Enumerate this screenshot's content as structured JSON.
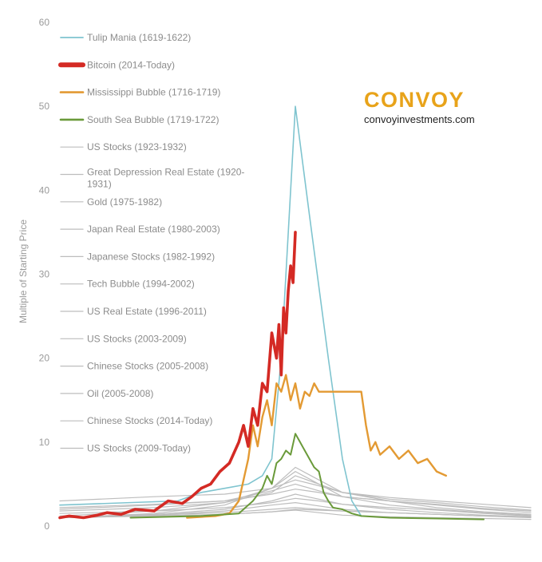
{
  "brand": {
    "name": "CONVOY",
    "website": "convoyinvestments.com",
    "accent_color": "#e8a31a",
    "website_color": "#222222"
  },
  "chart_data": {
    "type": "line",
    "title": "",
    "xlabel": "",
    "ylabel": "Multiple of Starting Price",
    "ylim": [
      0,
      60
    ],
    "y_ticks": [
      0,
      10,
      20,
      30,
      40,
      50,
      60
    ],
    "x_axis_labels_visible": false,
    "grid": false,
    "legend_position": "top-left",
    "series": [
      {
        "name": "Tulip Mania (1619-1622)",
        "color": "#7fc4cf",
        "width": 1.6,
        "legend_width": 1.8,
        "x": [
          0.0,
          0.25,
          0.3,
          0.35,
          0.4,
          0.43,
          0.45,
          0.47,
          0.5,
          0.53,
          0.57,
          0.6,
          0.62,
          0.64
        ],
        "y": [
          2.5,
          3,
          4,
          4.5,
          5,
          6,
          8,
          20,
          50,
          37,
          20,
          8,
          3,
          1.2
        ]
      },
      {
        "name": "Bitcoin (2014-Today)",
        "color": "#d42a24",
        "width": 3.6,
        "legend_width": 6,
        "x": [
          0.0,
          0.02,
          0.05,
          0.08,
          0.1,
          0.13,
          0.16,
          0.2,
          0.23,
          0.26,
          0.28,
          0.3,
          0.32,
          0.34,
          0.36,
          0.38,
          0.39,
          0.4,
          0.41,
          0.42,
          0.43,
          0.44,
          0.45,
          0.46,
          0.465,
          0.47,
          0.475,
          0.48,
          0.485,
          0.49,
          0.495,
          0.5
        ],
        "y": [
          1.0,
          1.2,
          1.0,
          1.3,
          1.6,
          1.4,
          2.0,
          1.8,
          3.0,
          2.7,
          3.5,
          4.5,
          5.0,
          6.5,
          7.5,
          10.0,
          12.0,
          9.5,
          14.0,
          12.0,
          17.0,
          16.0,
          23.0,
          20.0,
          24.0,
          18.0,
          26.0,
          23.0,
          28.0,
          31.0,
          29.0,
          35.0
        ]
      },
      {
        "name": "Mississippi Bubble (1716-1719)",
        "color": "#e39a33",
        "width": 2.4,
        "legend_width": 2.6,
        "x": [
          0.27,
          0.33,
          0.36,
          0.38,
          0.4,
          0.41,
          0.42,
          0.43,
          0.44,
          0.45,
          0.46,
          0.47,
          0.48,
          0.49,
          0.5,
          0.51,
          0.52,
          0.53,
          0.54,
          0.55,
          0.56,
          0.57,
          0.58,
          0.6,
          0.62,
          0.64,
          0.65,
          0.66,
          0.67,
          0.68,
          0.7,
          0.72,
          0.74,
          0.76,
          0.78,
          0.8,
          0.82
        ],
        "y": [
          1.0,
          1.2,
          1.5,
          3.0,
          8.0,
          12.0,
          9.5,
          13.0,
          15.0,
          12.0,
          17.0,
          16.0,
          18.0,
          15.0,
          17.0,
          14.0,
          16.0,
          15.5,
          17.0,
          16.0,
          16.0,
          16.0,
          16.0,
          16.0,
          16.0,
          16.0,
          12.0,
          9.0,
          10.0,
          8.5,
          9.5,
          8.0,
          9.0,
          7.5,
          8.0,
          6.5,
          6.0
        ]
      },
      {
        "name": "South Sea Bubble (1719-1722)",
        "color": "#6a9a3a",
        "width": 2.0,
        "legend_width": 2.6,
        "x": [
          0.15,
          0.3,
          0.38,
          0.41,
          0.43,
          0.44,
          0.45,
          0.46,
          0.47,
          0.48,
          0.49,
          0.5,
          0.51,
          0.52,
          0.53,
          0.54,
          0.55,
          0.56,
          0.57,
          0.58,
          0.6,
          0.62,
          0.64,
          0.7,
          0.8,
          0.9
        ],
        "y": [
          1.0,
          1.2,
          1.5,
          3.0,
          4.5,
          6.0,
          5.0,
          7.5,
          8.0,
          9.0,
          8.5,
          11.0,
          10.0,
          9.0,
          8.0,
          7.0,
          6.5,
          4.0,
          3.0,
          2.2,
          2.0,
          1.5,
          1.2,
          1.0,
          0.9,
          0.8
        ]
      },
      {
        "name": "US Stocks (1923-1932)",
        "color": "#bdbdbd",
        "width": 1.2,
        "legend_width": 1.2,
        "x": [
          0.0,
          0.2,
          0.35,
          0.45,
          0.5,
          0.55,
          0.6,
          0.7,
          0.8,
          0.9,
          1.0
        ],
        "y": [
          2.0,
          2.5,
          3.0,
          4.2,
          5.0,
          4.2,
          3.5,
          3.0,
          2.5,
          2.0,
          1.6
        ]
      },
      {
        "name": "Great Depression Real Estate (1920-1931)",
        "color": "#bdbdbd",
        "width": 1.2,
        "legend_width": 1.2,
        "x": [
          0.0,
          0.2,
          0.35,
          0.45,
          0.5,
          0.55,
          0.6,
          0.7,
          0.8,
          0.9,
          1.0
        ],
        "y": [
          1.5,
          1.8,
          2.2,
          2.8,
          3.3,
          3.0,
          2.6,
          2.2,
          1.9,
          1.5,
          1.2
        ]
      },
      {
        "name": "Gold (1975-1982)",
        "color": "#bdbdbd",
        "width": 1.2,
        "legend_width": 1.2,
        "x": [
          0.0,
          0.2,
          0.35,
          0.45,
          0.5,
          0.55,
          0.6,
          0.7,
          0.8,
          0.9,
          1.0
        ],
        "y": [
          3.0,
          3.5,
          3.8,
          4.5,
          5.5,
          4.8,
          4.0,
          3.4,
          3.0,
          2.6,
          2.2
        ]
      },
      {
        "name": "Japan Real Estate (1980-2003)",
        "color": "#bdbdbd",
        "width": 1.2,
        "legend_width": 1.2,
        "x": [
          0.0,
          0.2,
          0.35,
          0.45,
          0.5,
          0.55,
          0.6,
          0.7,
          0.8,
          0.9,
          1.0
        ],
        "y": [
          2.2,
          2.6,
          3.0,
          3.8,
          4.4,
          4.0,
          3.5,
          3.0,
          2.6,
          2.1,
          1.8
        ]
      },
      {
        "name": "Japanese Stocks (1982-1992)",
        "color": "#bdbdbd",
        "width": 1.2,
        "legend_width": 1.2,
        "x": [
          0.0,
          0.2,
          0.35,
          0.45,
          0.5,
          0.55,
          0.6,
          0.7,
          0.8,
          0.9,
          1.0
        ],
        "y": [
          1.8,
          2.2,
          2.8,
          4.0,
          6.0,
          5.0,
          4.0,
          3.2,
          2.8,
          2.3,
          1.9
        ]
      },
      {
        "name": "Tech Bubble (1994-2002)",
        "color": "#bdbdbd",
        "width": 1.2,
        "legend_width": 1.2,
        "x": [
          0.0,
          0.2,
          0.35,
          0.45,
          0.5,
          0.55,
          0.6,
          0.7,
          0.8,
          0.9,
          1.0
        ],
        "y": [
          1.2,
          1.8,
          2.8,
          4.5,
          7.0,
          5.5,
          4.0,
          3.0,
          2.2,
          1.7,
          1.4
        ]
      },
      {
        "name": "US Real Estate (1996-2011)",
        "color": "#bdbdbd",
        "width": 1.2,
        "legend_width": 1.2,
        "x": [
          0.0,
          0.2,
          0.35,
          0.45,
          0.5,
          0.55,
          0.6,
          0.7,
          0.8,
          0.9,
          1.0
        ],
        "y": [
          1.0,
          1.3,
          1.6,
          2.0,
          2.2,
          2.0,
          1.8,
          1.6,
          1.4,
          1.2,
          1.1
        ]
      },
      {
        "name": "US Stocks (2003-2009)",
        "color": "#bdbdbd",
        "width": 1.2,
        "legend_width": 1.2,
        "x": [
          0.0,
          0.2,
          0.35,
          0.45,
          0.5,
          0.55,
          0.6,
          0.7,
          0.8,
          0.9,
          1.0
        ],
        "y": [
          1.0,
          1.2,
          1.4,
          1.7,
          1.9,
          1.6,
          1.3,
          1.1,
          1.0,
          0.9,
          0.8
        ]
      },
      {
        "name": "Chinese Stocks (2005-2008)",
        "color": "#bdbdbd",
        "width": 1.2,
        "legend_width": 1.2,
        "x": [
          0.0,
          0.2,
          0.35,
          0.45,
          0.5,
          0.55,
          0.6,
          0.7,
          0.8,
          0.9,
          1.0
        ],
        "y": [
          1.0,
          1.5,
          2.5,
          4.5,
          6.5,
          5.0,
          3.5,
          2.5,
          2.0,
          1.6,
          1.3
        ]
      },
      {
        "name": "Oil (2005-2008)",
        "color": "#bdbdbd",
        "width": 1.2,
        "legend_width": 1.2,
        "x": [
          0.0,
          0.2,
          0.35,
          0.45,
          0.5,
          0.55,
          0.6,
          0.7,
          0.8,
          0.9,
          1.0
        ],
        "y": [
          1.0,
          1.4,
          2.0,
          3.0,
          3.8,
          3.2,
          2.6,
          2.0,
          1.6,
          1.3,
          1.1
        ]
      },
      {
        "name": "Chinese Stocks (2014-Today)",
        "color": "#bdbdbd",
        "width": 1.2,
        "legend_width": 1.2,
        "x": [
          0.0,
          0.2,
          0.35,
          0.45,
          0.5,
          0.55,
          0.6,
          0.7,
          0.8,
          0.9,
          1.0
        ],
        "y": [
          1.0,
          1.3,
          1.8,
          2.5,
          2.8,
          2.4,
          2.0,
          1.6,
          1.4,
          1.2,
          1.0
        ]
      },
      {
        "name": "US Stocks (2009-Today)",
        "color": "#bdbdbd",
        "width": 1.2,
        "legend_width": 1.2,
        "x": [
          0.0,
          0.2,
          0.35,
          0.45,
          0.5,
          0.55,
          0.6,
          0.7,
          0.8,
          0.9,
          1.0
        ],
        "y": [
          1.0,
          1.2,
          1.4,
          1.7,
          2.0,
          1.9,
          1.8,
          1.6,
          1.4,
          1.2,
          1.1
        ]
      }
    ]
  }
}
